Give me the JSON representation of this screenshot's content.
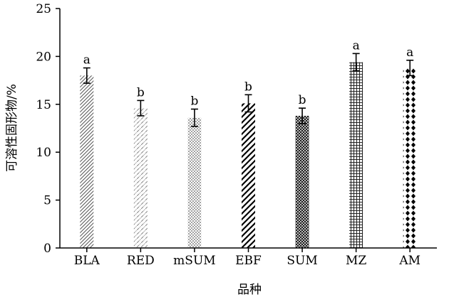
{
  "chart_data": {
    "type": "bar",
    "xlabel": "品种",
    "ylabel": "可溶性固形物/%",
    "ylim": [
      0,
      25
    ],
    "yticks": [
      0,
      5,
      10,
      15,
      20,
      25
    ],
    "categories": [
      "BLA",
      "RED",
      "mSUM",
      "EBF",
      "SUM",
      "MZ",
      "AM"
    ],
    "values": [
      18.0,
      14.6,
      13.6,
      15.1,
      13.8,
      19.4,
      18.8
    ],
    "errors": [
      0.8,
      0.8,
      0.9,
      0.9,
      0.8,
      0.9,
      0.8
    ],
    "significance": [
      "a",
      "b",
      "b",
      "b",
      "b",
      "a",
      "a"
    ],
    "patterns": [
      "diagonal-thin",
      "dashed-diagonal",
      "dots-fine",
      "diagonal-thick",
      "crosshatch-dense",
      "grid",
      "diamonds"
    ],
    "grid": false,
    "legend": "none"
  }
}
